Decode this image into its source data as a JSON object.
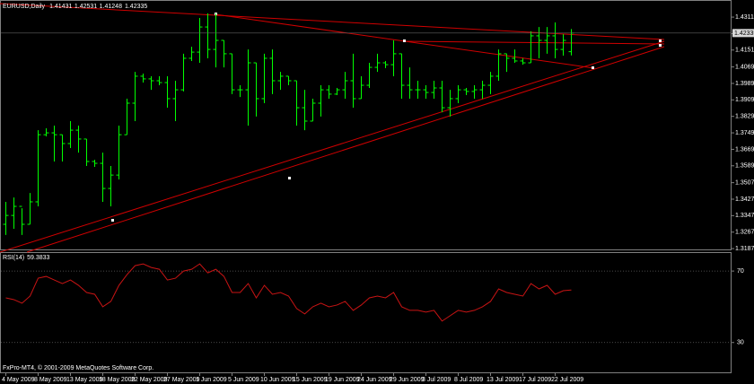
{
  "chart_data": {
    "type": "ohlc",
    "title": "EURUSD,Daily",
    "color": "#00ff00",
    "grid": false,
    "categories": [
      "4 May 2009",
      null,
      null,
      null,
      "8 May 2009",
      null,
      null,
      null,
      "13 May 2009",
      null,
      null,
      null,
      "18 May 2009",
      null,
      null,
      null,
      "22 May 2009",
      null,
      null,
      null,
      "27 May 2009",
      null,
      null,
      null,
      "1 Jun 2009",
      null,
      null,
      null,
      "5 Jun 2009",
      null,
      null,
      null,
      "10 Jun 2009",
      null,
      null,
      null,
      "15 Jun 2009",
      null,
      null,
      null,
      "19 Jun 2009",
      null,
      null,
      null,
      "24 Jun 2009",
      null,
      null,
      null,
      "29 Jun 2009",
      null,
      null,
      null,
      "3 Jul 2009",
      null,
      null,
      null,
      "8 Jul 2009",
      null,
      null,
      null,
      "13 Jul 2009",
      null,
      null,
      null,
      "17 Jul 2009",
      null,
      null,
      null,
      "22 Jul 2009",
      null,
      null
    ],
    "open": [
      1.3305,
      1.3348,
      1.3392,
      1.3305,
      1.3414,
      1.374,
      1.3749,
      1.374,
      1.3697,
      1.3762,
      1.3719,
      1.361,
      1.3601,
      1.3479,
      1.3544,
      1.374,
      1.3893,
      1.4024,
      1.4011,
      1.4002,
      1.3993,
      1.3915,
      1.3958,
      1.4111,
      1.4141,
      1.4263,
      1.4154,
      1.4198,
      1.4133,
      1.3958,
      1.3958,
      1.4089,
      1.3915,
      1.4111,
      1.4002,
      1.4024,
      1.4002,
      1.3871,
      1.3806,
      1.3893,
      1.3958,
      1.3937,
      1.3958,
      1.4002,
      1.3915,
      1.398,
      1.4067,
      1.4089,
      1.408,
      1.4133,
      1.398,
      1.3958,
      1.3958,
      1.3945,
      1.3967,
      1.3871,
      1.3915,
      1.3958,
      1.395,
      1.3958,
      1.398,
      1.4024,
      1.4133,
      1.4111,
      1.4098,
      1.4089,
      1.422,
      1.4198,
      1.422,
      1.4154,
      1.41431
    ],
    "high": [
      1.3414,
      1.3435,
      1.3383,
      1.3457,
      1.3762,
      1.3771,
      1.3784,
      1.374,
      1.3806,
      1.3784,
      1.3719,
      1.3618,
      1.3653,
      1.3588,
      1.3784,
      1.3915,
      1.4045,
      1.4037,
      1.4024,
      1.4024,
      1.4024,
      1.4002,
      1.4133,
      1.4167,
      1.4307,
      1.4329,
      1.4329,
      1.4198,
      1.4133,
      1.398,
      1.4154,
      1.4089,
      1.4133,
      1.4154,
      1.4045,
      1.4024,
      1.4002,
      1.3958,
      1.3915,
      1.398,
      1.398,
      1.3967,
      1.4045,
      1.4133,
      1.4024,
      1.4089,
      1.4133,
      1.4098,
      1.4198,
      1.4133,
      1.4067,
      1.4002,
      1.398,
      1.4002,
      1.4002,
      1.3958,
      1.398,
      1.3967,
      1.398,
      1.4002,
      1.4045,
      1.4154,
      1.4133,
      1.4154,
      1.4111,
      1.4242,
      1.4263,
      1.4263,
      1.4285,
      1.4228,
      1.42531
    ],
    "low": [
      1.3253,
      1.3283,
      1.3253,
      1.3305,
      1.3392,
      1.3732,
      1.361,
      1.361,
      1.3675,
      1.3653,
      1.3588,
      1.3584,
      1.3414,
      1.3392,
      1.3523,
      1.374,
      1.3806,
      1.3993,
      1.3958,
      1.398,
      1.3871,
      1.3806,
      1.395,
      1.4098,
      1.4089,
      1.4111,
      1.4067,
      1.4067,
      1.3937,
      1.3923,
      1.3784,
      1.3828,
      1.3893,
      1.3937,
      1.3958,
      1.398,
      1.3784,
      1.3762,
      1.3806,
      1.3828,
      1.3915,
      1.3932,
      1.3915,
      1.3871,
      1.3915,
      1.3967,
      1.4045,
      1.4063,
      1.4024,
      1.3915,
      1.3915,
      1.3915,
      1.3915,
      1.3915,
      1.3849,
      1.3828,
      1.3893,
      1.3932,
      1.3915,
      1.3915,
      1.3937,
      1.4002,
      1.4045,
      1.4089,
      1.408,
      1.4089,
      1.4111,
      1.4133,
      1.4111,
      1.4124,
      1.41248
    ],
    "close": [
      1.3348,
      1.3392,
      1.3305,
      1.3414,
      1.374,
      1.3749,
      1.374,
      1.3697,
      1.3762,
      1.3719,
      1.361,
      1.3601,
      1.3479,
      1.3544,
      1.374,
      1.3893,
      1.4024,
      1.4011,
      1.4002,
      1.3993,
      1.3915,
      1.3958,
      1.4111,
      1.4141,
      1.4263,
      1.4154,
      1.4198,
      1.4133,
      1.3958,
      1.3958,
      1.4089,
      1.3915,
      1.4111,
      1.4002,
      1.4024,
      1.4002,
      1.3871,
      1.3806,
      1.3893,
      1.3958,
      1.3937,
      1.3958,
      1.4002,
      1.3915,
      1.398,
      1.4067,
      1.4089,
      1.408,
      1.4133,
      1.398,
      1.3958,
      1.3958,
      1.3945,
      1.3967,
      1.3871,
      1.3915,
      1.3958,
      1.395,
      1.3958,
      1.398,
      1.4024,
      1.4133,
      1.4111,
      1.4098,
      1.4089,
      1.422,
      1.4198,
      1.422,
      1.4154,
      1.4198,
      1.42335
    ],
    "ylim": [
      1.3183,
      1.4394
    ],
    "yticks": [
      {
        "value": 1.4311,
        "label": "1.43110"
      },
      {
        "value": 1.4231,
        "label": "1.42310"
      },
      {
        "value": 1.4151,
        "label": "1.41510"
      },
      {
        "value": 1.4069,
        "label": "1.40690"
      },
      {
        "value": 1.3989,
        "label": "1.39890"
      },
      {
        "value": 1.3909,
        "label": "1.39090"
      },
      {
        "value": 1.3829,
        "label": "1.38290"
      },
      {
        "value": 1.3749,
        "label": "1.37490"
      },
      {
        "value": 1.3669,
        "label": "1.36690"
      },
      {
        "value": 1.3589,
        "label": "1.35890"
      },
      {
        "value": 1.3507,
        "label": "1.35070"
      },
      {
        "value": 1.3427,
        "label": "1.34270"
      },
      {
        "value": 1.3347,
        "label": "1.33470"
      },
      {
        "value": 1.3267,
        "label": "1.32670"
      },
      {
        "value": 1.3187,
        "label": "1.31870"
      }
    ],
    "footer": "FxPro-MT4, © 2001-2009 MetaQuotes Software Corp.",
    "rsi": {
      "type": "line",
      "name": "RSI(14)",
      "color": "#c81414",
      "values": [
        55,
        54,
        52,
        56,
        66,
        67,
        65,
        63,
        65,
        62,
        58,
        57,
        50,
        53,
        62,
        68,
        73,
        74,
        72,
        71,
        65,
        66,
        70,
        71,
        74,
        69,
        71,
        67,
        58,
        58,
        63,
        55,
        62,
        57,
        58,
        56,
        49,
        46,
        50,
        52,
        50,
        51,
        53,
        48,
        51,
        55,
        56,
        55,
        58,
        50,
        48,
        48,
        47,
        48,
        42,
        45,
        48,
        47,
        48,
        50,
        53,
        60,
        58,
        57,
        56,
        63,
        60,
        62,
        57,
        59,
        59.3833
      ],
      "ylim": [
        12.8,
        80.6
      ],
      "yticks": [
        70,
        30
      ]
    }
  }
}
